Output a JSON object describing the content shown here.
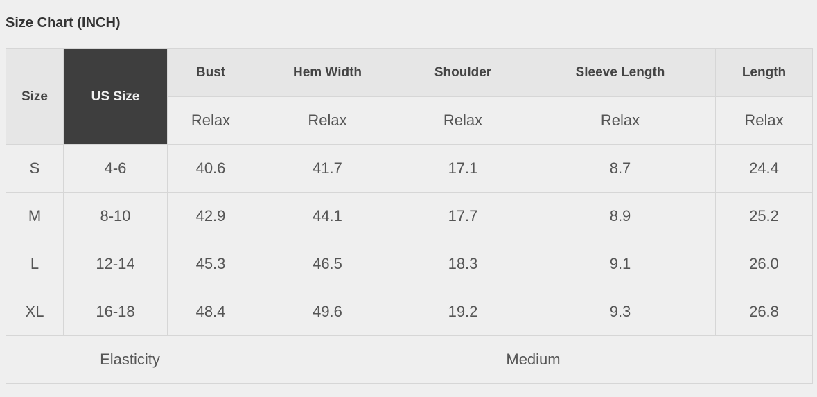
{
  "title": "Size Chart (INCH)",
  "headers": [
    "Size",
    "US Size",
    "Bust",
    "Hem Width",
    "Shoulder",
    "Sleeve Length",
    "Length"
  ],
  "subheader": "Relax",
  "rows": [
    [
      "S",
      "4-6",
      "40.6",
      "41.7",
      "17.1",
      "8.7",
      "24.4"
    ],
    [
      "M",
      "8-10",
      "42.9",
      "44.1",
      "17.7",
      "8.9",
      "25.2"
    ],
    [
      "L",
      "12-14",
      "45.3",
      "46.5",
      "18.3",
      "9.1",
      "26.0"
    ],
    [
      "XL",
      "16-18",
      "48.4",
      "49.6",
      "19.2",
      "9.3",
      "26.8"
    ]
  ],
  "footer": {
    "label": "Elasticity",
    "value": "Medium"
  },
  "colors": {
    "highlight_header": "#3e3e3e",
    "background": "#efefef"
  }
}
